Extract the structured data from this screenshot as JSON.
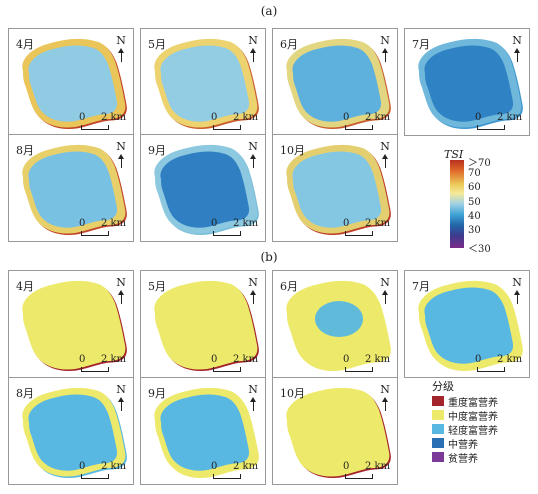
{
  "figure": {
    "label_a": "(a)",
    "label_b": "(b)"
  },
  "north_label": "N",
  "scale": {
    "zero": "0",
    "two": "2 km"
  },
  "panels_a": [
    {
      "month": "4月",
      "fill": "#8fcbe3",
      "rim": "#e9c55a",
      "edge": "#c0442a"
    },
    {
      "month": "5月",
      "fill": "#92cde4",
      "rim": "#ecd36f",
      "edge": "#c95a2b"
    },
    {
      "month": "6月",
      "fill": "#5fb1dd",
      "rim": "#e2d681",
      "edge": "#c75d2e"
    },
    {
      "month": "7月",
      "fill": "#2f82c4",
      "rim": "#6fb8dc",
      "edge": "#3f97cf"
    },
    {
      "month": "8月",
      "fill": "#79c1e3",
      "rim": "#e7cf69",
      "edge": "#c2452a"
    },
    {
      "month": "9月",
      "fill": "#2f7fc2",
      "rim": "#8dc8e1",
      "edge": "#7cbfd9"
    },
    {
      "month": "10月",
      "fill": "#83c7e3",
      "rim": "#e4cf70",
      "edge": "#bd3e28"
    }
  ],
  "panels_b": [
    {
      "month": "4月",
      "fill": "#ede96a",
      "rim": "#ede96a",
      "edge": "#a3242a",
      "core": ""
    },
    {
      "month": "5月",
      "fill": "#ede96a",
      "rim": "#ede96a",
      "edge": "#a3242a",
      "core": ""
    },
    {
      "month": "6月",
      "fill": "#ede96a",
      "rim": "#ede96a",
      "edge": "#ede96a",
      "core": "#58b8e2"
    },
    {
      "month": "7月",
      "fill": "#58b8e2",
      "rim": "#ede96a",
      "edge": "#ede96a",
      "core": ""
    },
    {
      "month": "8月",
      "fill": "#58b8e2",
      "rim": "#ede96a",
      "edge": "#58b8e2",
      "core": ""
    },
    {
      "month": "9月",
      "fill": "#58b8e2",
      "rim": "#ede96a",
      "edge": "#ede96a",
      "core": ""
    },
    {
      "month": "10月",
      "fill": "#ede96a",
      "rim": "#ede96a",
      "edge": "#a3242a",
      "core": ""
    }
  ],
  "colorbar": {
    "title": "TSI",
    "ticks": [
      "＞70",
      "70",
      "60",
      "50",
      "40",
      "30",
      "＜30"
    ]
  },
  "legend": {
    "title": "分级",
    "items": [
      {
        "label": "重度富营养",
        "color": "#a3242a"
      },
      {
        "label": "中度富营养",
        "color": "#ede96a"
      },
      {
        "label": "轻度富营养",
        "color": "#58b8e2"
      },
      {
        "label": "中营养",
        "color": "#2a6fb4"
      },
      {
        "label": "贫营养",
        "color": "#7b3a97"
      }
    ]
  }
}
